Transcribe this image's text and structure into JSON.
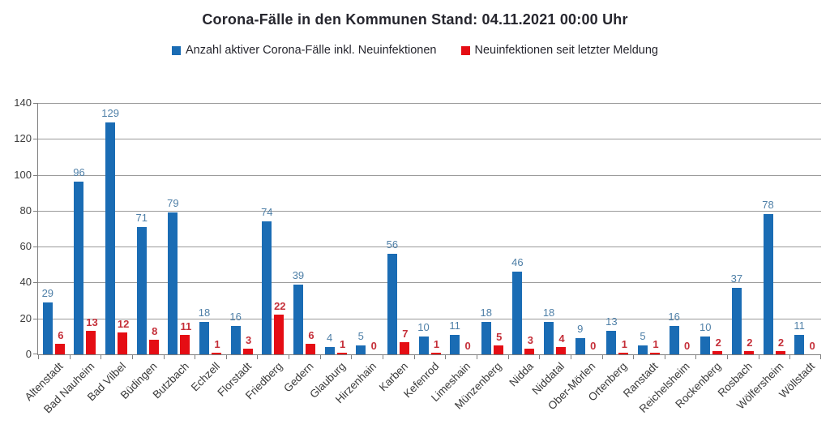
{
  "title": "Corona-Fälle in den Kommunen Stand: 04.11.2021 00:00 Uhr",
  "legend": [
    {
      "label": "Anzahl aktiver Corona-Fälle inkl. Neuinfektionen",
      "color": "#1a6cb4"
    },
    {
      "label": "Neuinfektionen seit letzter Meldung",
      "color": "#e50d14"
    }
  ],
  "colors": {
    "blue_bar": "#1a6cb4",
    "blue_value_label": "#4e7fa7",
    "red_bar": "#e50d14",
    "red_value_label": "#c52f39",
    "gridline": "#9b9b9b",
    "axis": "#7f7f7f",
    "tick_label": "#3d3d3d"
  },
  "chart_data": {
    "type": "bar",
    "title": "Corona-Fälle in den Kommunen Stand: 04.11.2021 00:00 Uhr",
    "xlabel": "",
    "ylabel": "",
    "ylim": [
      0,
      140
    ],
    "ytick_step": 20,
    "grid": true,
    "legend_position": "top",
    "categories": [
      "Altenstadt",
      "Bad Nauheim",
      "Bad Vilbel",
      "Büdingen",
      "Butzbach",
      "Echzell",
      "Florstadt",
      "Friedberg",
      "Gedern",
      "Glauburg",
      "Hirzenhain",
      "Karben",
      "Kefenrod",
      "Limeshain",
      "Münzenberg",
      "Nidda",
      "Niddatal",
      "Ober-Mörlen",
      "Ortenberg",
      "Ranstadt",
      "Reichelsheim",
      "Rockenberg",
      "Rosbach",
      "Wölfersheim",
      "Wöllstadt"
    ],
    "series": [
      {
        "name": "Anzahl aktiver Corona-Fälle inkl. Neuinfektionen",
        "color": "#1a6cb4",
        "label_color": "#4e7fa7",
        "values": [
          29,
          96,
          129,
          71,
          79,
          18,
          16,
          74,
          39,
          4,
          5,
          56,
          10,
          11,
          18,
          46,
          18,
          9,
          13,
          5,
          16,
          10,
          37,
          78,
          11
        ]
      },
      {
        "name": "Neuinfektionen seit letzter Meldung",
        "color": "#e50d14",
        "label_color": "#c52f39",
        "values": [
          6,
          13,
          12,
          8,
          11,
          1,
          3,
          22,
          6,
          1,
          0,
          7,
          1,
          0,
          5,
          3,
          4,
          0,
          1,
          1,
          0,
          2,
          2,
          2,
          0
        ]
      }
    ]
  }
}
